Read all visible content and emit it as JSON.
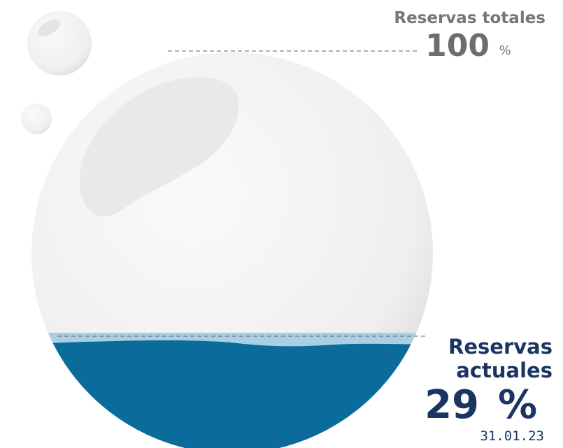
{
  "total": {
    "label": "Reservas totales",
    "value": "100",
    "unit": "%"
  },
  "current": {
    "label_line1": "Reservas",
    "label_line2": "actuales",
    "value": "29",
    "unit": "%",
    "date": "31.01.23"
  }
}
